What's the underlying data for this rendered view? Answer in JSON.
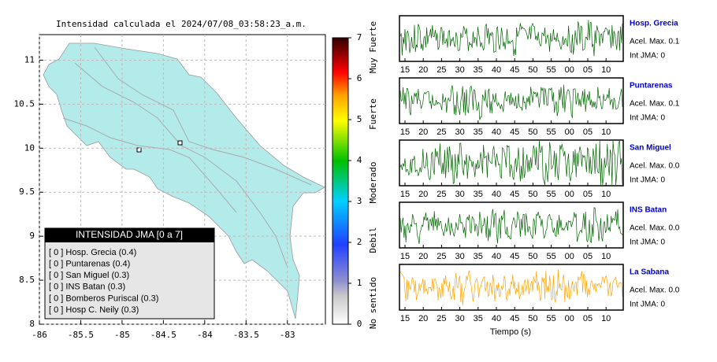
{
  "map": {
    "title": "Intensidad calculada el 2024/07/08_03:58:23_a.m.",
    "xlim": [
      -86,
      -82.54
    ],
    "xticks": [
      -86,
      -85.5,
      -85,
      -84.5,
      -84,
      -83.5,
      -83
    ],
    "ylim": [
      8,
      11.29
    ],
    "yticks": [
      8,
      8.5,
      9,
      9.5,
      10,
      10.5,
      11
    ],
    "land_color": "#b3ebeb"
  },
  "colorbar": {
    "lim": [
      0,
      7
    ],
    "ticks": [
      0,
      1,
      2,
      3,
      4,
      5,
      6,
      7
    ],
    "labels": [
      "No sentido",
      "Debil",
      "Moderado",
      "Fuerte",
      "Muy Fuerte"
    ]
  },
  "legend": {
    "title": "INTENSIDAD JMA [0 a 7]",
    "items": [
      "[ 0 ]  Hosp. Grecia (0.4)",
      "[ 0 ]  Puntarenas (0.4)",
      "[ 0 ]  San Miguel (0.3)",
      "[ 0 ]  INS Batan (0.3)",
      "[ 0 ]  Bomberos Puriscal (0.3)",
      "[ 0 ]  Hosp C. Neily (0.3)"
    ]
  },
  "waveforms": [
    {
      "name": "Hosp. Grecia",
      "acel": "Acel. Max. 0.1",
      "jma": "Int JMA: 0",
      "color": "#006400"
    },
    {
      "name": "Puntarenas",
      "acel": "Acel. Max. 0.1",
      "jma": "Int JMA: 0",
      "color": "#006400"
    },
    {
      "name": "San Miguel",
      "acel": "Acel. Max. 0.0",
      "jma": "Int JMA: 0",
      "color": "#006400"
    },
    {
      "name": "INS Batan",
      "acel": "Acel. Max. 0.0",
      "jma": "Int JMA: 0",
      "color": "#006400"
    },
    {
      "name": "La Sabana",
      "acel": "Acel. Max. 0.0",
      "jma": "Int JMA: 0",
      "color": "#ffa500"
    }
  ],
  "time_ticks": [
    "15",
    "20",
    "25",
    "30",
    "35",
    "40",
    "45",
    "50",
    "55",
    "00",
    "05",
    "10"
  ],
  "time_label": "Tiempo (s)"
}
